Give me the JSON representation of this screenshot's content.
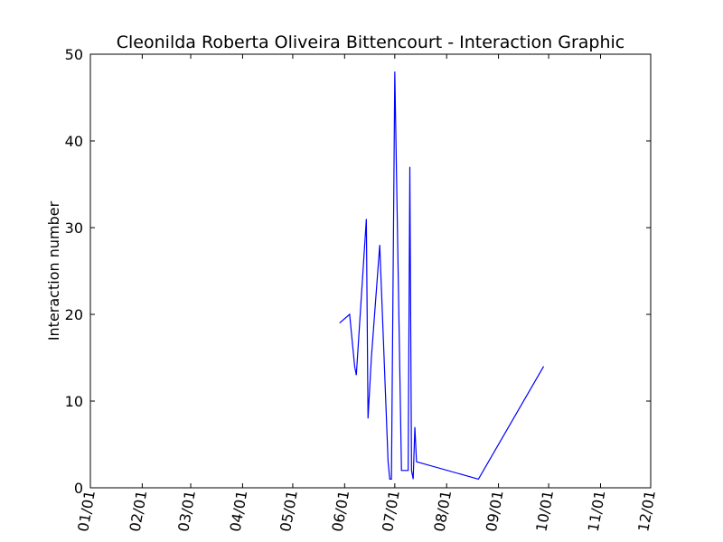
{
  "chart_data": {
    "type": "line",
    "title": "Cleonilda Roberta Oliveira Bittencourt - Interaction Graphic",
    "xlabel": "",
    "ylabel": "Interaction number",
    "x_axis_type": "date",
    "xlim": [
      "2016-01-01",
      "2016-12-01"
    ],
    "ylim": [
      0,
      50
    ],
    "x_ticks": [
      {
        "date": "2016-01-01",
        "label": "01/01"
      },
      {
        "date": "2016-02-01",
        "label": "02/01"
      },
      {
        "date": "2016-03-01",
        "label": "03/01"
      },
      {
        "date": "2016-04-01",
        "label": "04/01"
      },
      {
        "date": "2016-05-01",
        "label": "05/01"
      },
      {
        "date": "2016-06-01",
        "label": "06/01"
      },
      {
        "date": "2016-07-01",
        "label": "07/01"
      },
      {
        "date": "2016-08-01",
        "label": "08/01"
      },
      {
        "date": "2016-09-01",
        "label": "09/01"
      },
      {
        "date": "2016-10-01",
        "label": "10/01"
      },
      {
        "date": "2016-11-01",
        "label": "11/01"
      },
      {
        "date": "2016-12-01",
        "label": "12/01"
      }
    ],
    "y_ticks": [
      0,
      10,
      20,
      30,
      40,
      50
    ],
    "x_tick_rotation": "rotated",
    "grid": false,
    "legend": "none",
    "series": [
      {
        "color": "#0000ff",
        "points": [
          {
            "x": "2016-05-29",
            "y": 19
          },
          {
            "x": "2016-06-04",
            "y": 20
          },
          {
            "x": "2016-06-07",
            "y": 14
          },
          {
            "x": "2016-06-08",
            "y": 13
          },
          {
            "x": "2016-06-14",
            "y": 31
          },
          {
            "x": "2016-06-15",
            "y": 8
          },
          {
            "x": "2016-06-17",
            "y": 15
          },
          {
            "x": "2016-06-22",
            "y": 28
          },
          {
            "x": "2016-06-26",
            "y": 8
          },
          {
            "x": "2016-06-27",
            "y": 3
          },
          {
            "x": "2016-06-28",
            "y": 1
          },
          {
            "x": "2016-06-29",
            "y": 1
          },
          {
            "x": "2016-07-01",
            "y": 48
          },
          {
            "x": "2016-07-05",
            "y": 2
          },
          {
            "x": "2016-07-09",
            "y": 2
          },
          {
            "x": "2016-07-10",
            "y": 37
          },
          {
            "x": "2016-07-11",
            "y": 2
          },
          {
            "x": "2016-07-12",
            "y": 1
          },
          {
            "x": "2016-07-13",
            "y": 7
          },
          {
            "x": "2016-07-14",
            "y": 3
          },
          {
            "x": "2016-08-20",
            "y": 1
          },
          {
            "x": "2016-09-28",
            "y": 14
          }
        ]
      }
    ]
  }
}
